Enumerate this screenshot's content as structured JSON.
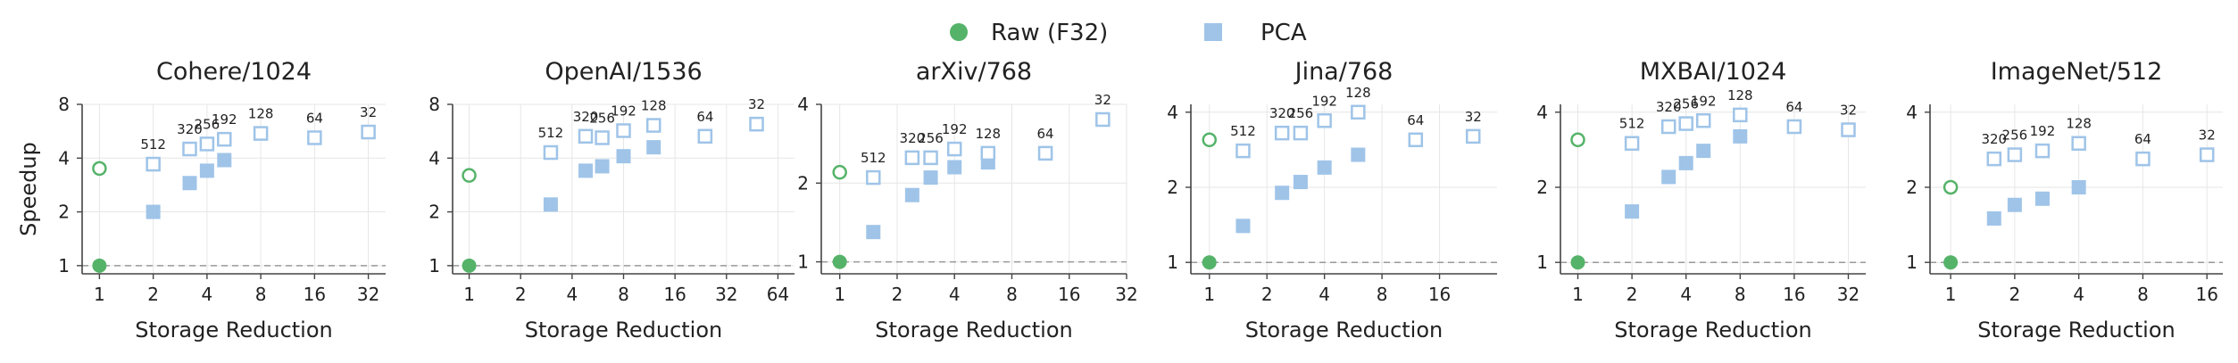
{
  "legend": {
    "raw_label": "Raw (F32)",
    "pca_label": "PCA",
    "raw_color": "#55b369",
    "pca_color": "#9fc4e8",
    "placement": "top-center"
  },
  "colors": {
    "grid": "#e6e6e6",
    "baseline": "#999999",
    "axis": "#444444"
  },
  "chart_data": [
    {
      "type": "scatter",
      "title": "Cohere/1024",
      "xlabel": "Storage Reduction",
      "ylabel": "Speedup",
      "xscale": "log2",
      "yscale": "log2",
      "xlim": [
        0.8,
        40
      ],
      "ylim": [
        0.9,
        8
      ],
      "xticks": [
        1,
        2,
        4,
        8,
        16,
        32
      ],
      "xtick_labels": [
        "1",
        "2",
        "4",
        "8",
        "16",
        "32"
      ],
      "yticks": [
        1,
        2,
        4,
        8
      ],
      "ytick_labels": [
        "1",
        "2",
        "4",
        "8"
      ],
      "grid": true,
      "baseline": 1,
      "raw": {
        "x": 1,
        "filled": 1,
        "hollow": 3.5
      },
      "pca_filled": [
        [
          2,
          2
        ],
        [
          3.2,
          2.9
        ],
        [
          4,
          3.4
        ],
        [
          5,
          3.9
        ],
        [
          8,
          5.5
        ],
        [
          16,
          5.2
        ],
        [
          32,
          5.6
        ]
      ],
      "pca_hollow": [
        [
          2,
          3.7,
          "512"
        ],
        [
          3.2,
          4.5,
          "320"
        ],
        [
          4,
          4.8,
          "256"
        ],
        [
          5,
          5.1,
          "192"
        ],
        [
          8,
          5.5,
          "128"
        ],
        [
          16,
          5.2,
          "64"
        ],
        [
          32,
          5.6,
          "32"
        ]
      ]
    },
    {
      "type": "scatter",
      "title": "OpenAI/1536",
      "xlabel": "Storage Reduction",
      "ylabel": "",
      "xscale": "log2",
      "yscale": "log2",
      "xlim": [
        0.8,
        80
      ],
      "ylim": [
        0.9,
        8
      ],
      "xticks": [
        1,
        2,
        4,
        8,
        16,
        32,
        64
      ],
      "xtick_labels": [
        "1",
        "2",
        "4",
        "8",
        "16",
        "32",
        "64"
      ],
      "yticks": [
        1,
        2,
        4,
        8
      ],
      "ytick_labels": [
        "1",
        "2",
        "4",
        "8"
      ],
      "grid": true,
      "baseline": 1,
      "raw": {
        "x": 1,
        "filled": 1,
        "hollow": 3.2
      },
      "pca_filled": [
        [
          3,
          2.2
        ],
        [
          4.8,
          3.4
        ],
        [
          6,
          3.6
        ],
        [
          8,
          4.1
        ],
        [
          12,
          4.6
        ],
        [
          24,
          5.3
        ],
        [
          48,
          6.2
        ]
      ],
      "pca_hollow": [
        [
          3,
          4.3,
          "512"
        ],
        [
          4.8,
          5.3,
          "320"
        ],
        [
          6,
          5.2,
          "256"
        ],
        [
          8,
          5.7,
          "192"
        ],
        [
          12,
          6.1,
          "128"
        ],
        [
          24,
          5.3,
          "64"
        ],
        [
          48,
          6.2,
          "32"
        ]
      ]
    },
    {
      "type": "scatter",
      "title": "arXiv/768",
      "xlabel": "Storage Reduction",
      "ylabel": "",
      "xscale": "log2",
      "yscale": "log2",
      "xlim": [
        0.8,
        32
      ],
      "ylim": [
        0.9,
        4
      ],
      "xticks": [
        1,
        2,
        4,
        8,
        16,
        32
      ],
      "xtick_labels": [
        "1",
        "2",
        "4",
        "8",
        "16",
        "32"
      ],
      "yticks": [
        1,
        2,
        4
      ],
      "ytick_labels": [
        "1",
        "2",
        "4"
      ],
      "grid": true,
      "baseline": 1,
      "raw": {
        "x": 1,
        "filled": 1,
        "hollow": 2.2
      },
      "pca_filled": [
        [
          1.5,
          1.3
        ],
        [
          2.4,
          1.8
        ],
        [
          3,
          2.1
        ],
        [
          4,
          2.3
        ],
        [
          6,
          2.4
        ],
        [
          12,
          2.6
        ],
        [
          24,
          3.5
        ]
      ],
      "pca_hollow": [
        [
          1.5,
          2.1,
          "512"
        ],
        [
          2.4,
          2.5,
          "320"
        ],
        [
          3,
          2.5,
          "256"
        ],
        [
          4,
          2.7,
          "192"
        ],
        [
          6,
          2.6,
          "128"
        ],
        [
          12,
          2.6,
          "64"
        ],
        [
          24,
          3.5,
          "32"
        ]
      ]
    },
    {
      "type": "scatter",
      "title": "Jina/768",
      "xlabel": "Storage Reduction",
      "ylabel": "",
      "xscale": "log2",
      "yscale": "log2",
      "xlim": [
        0.8,
        32
      ],
      "ylim": [
        0.9,
        4.3
      ],
      "xticks": [
        1,
        2,
        4,
        8,
        16
      ],
      "xtick_labels": [
        "1",
        "2",
        "4",
        "8",
        "16"
      ],
      "yticks": [
        1,
        2,
        4
      ],
      "ytick_labels": [
        "1",
        "2",
        "4"
      ],
      "grid": true,
      "baseline": 1,
      "raw": {
        "x": 1,
        "filled": 1,
        "hollow": 3.1
      },
      "pca_filled": [
        [
          1.5,
          1.4
        ],
        [
          2.4,
          1.9
        ],
        [
          3,
          2.1
        ],
        [
          4,
          2.4
        ],
        [
          6,
          2.7
        ],
        [
          12,
          3.1
        ],
        [
          24,
          3.2
        ]
      ],
      "pca_hollow": [
        [
          1.5,
          2.8,
          "512"
        ],
        [
          2.4,
          3.3,
          "320"
        ],
        [
          3,
          3.3,
          "256"
        ],
        [
          4,
          3.7,
          "192"
        ],
        [
          6,
          4,
          "128"
        ],
        [
          12,
          3.1,
          "64"
        ],
        [
          24,
          3.2,
          "32"
        ]
      ]
    },
    {
      "type": "scatter",
      "title": "MXBAI/1024",
      "xlabel": "Storage Reduction",
      "ylabel": "",
      "xscale": "log2",
      "yscale": "log2",
      "xlim": [
        0.8,
        40
      ],
      "ylim": [
        0.9,
        4.3
      ],
      "xticks": [
        1,
        2,
        4,
        8,
        16,
        32
      ],
      "xtick_labels": [
        "1",
        "2",
        "4",
        "8",
        "16",
        "32"
      ],
      "yticks": [
        1,
        2,
        4
      ],
      "ytick_labels": [
        "1",
        "2",
        "4"
      ],
      "grid": true,
      "baseline": 1,
      "raw": {
        "x": 1,
        "filled": 1,
        "hollow": 3.1
      },
      "pca_filled": [
        [
          2,
          1.6
        ],
        [
          3.2,
          2.2
        ],
        [
          4,
          2.5
        ],
        [
          5,
          2.8
        ],
        [
          8,
          3.2
        ],
        [
          16,
          3.5
        ],
        [
          32,
          3.4
        ]
      ],
      "pca_hollow": [
        [
          2,
          3,
          "512"
        ],
        [
          3.2,
          3.5,
          "320"
        ],
        [
          4,
          3.6,
          "256"
        ],
        [
          5,
          3.7,
          "192"
        ],
        [
          8,
          3.9,
          "128"
        ],
        [
          16,
          3.5,
          "64"
        ],
        [
          32,
          3.4,
          "32"
        ]
      ]
    },
    {
      "type": "scatter",
      "title": "ImageNet/512",
      "xlabel": "Storage Reduction",
      "ylabel": "",
      "xscale": "log2",
      "yscale": "log2",
      "xlim": [
        0.8,
        19
      ],
      "ylim": [
        0.9,
        4.3
      ],
      "xticks": [
        1,
        2,
        4,
        8,
        16
      ],
      "xtick_labels": [
        "1",
        "2",
        "4",
        "8",
        "16"
      ],
      "yticks": [
        1,
        2,
        4
      ],
      "ytick_labels": [
        "1",
        "2",
        "4"
      ],
      "grid": true,
      "baseline": 1,
      "raw": {
        "x": 1,
        "filled": 1,
        "hollow": 2
      },
      "pca_filled": [
        [
          1.6,
          1.5
        ],
        [
          2,
          1.7
        ],
        [
          2.7,
          1.8
        ],
        [
          4,
          2
        ],
        [
          8,
          2.6
        ],
        [
          16,
          2.7
        ]
      ],
      "pca_hollow": [
        [
          1.6,
          2.6,
          "320"
        ],
        [
          2,
          2.7,
          "256"
        ],
        [
          2.7,
          2.8,
          "192"
        ],
        [
          4,
          3,
          "128"
        ],
        [
          8,
          2.6,
          "64"
        ],
        [
          16,
          2.7,
          "32"
        ]
      ]
    }
  ]
}
